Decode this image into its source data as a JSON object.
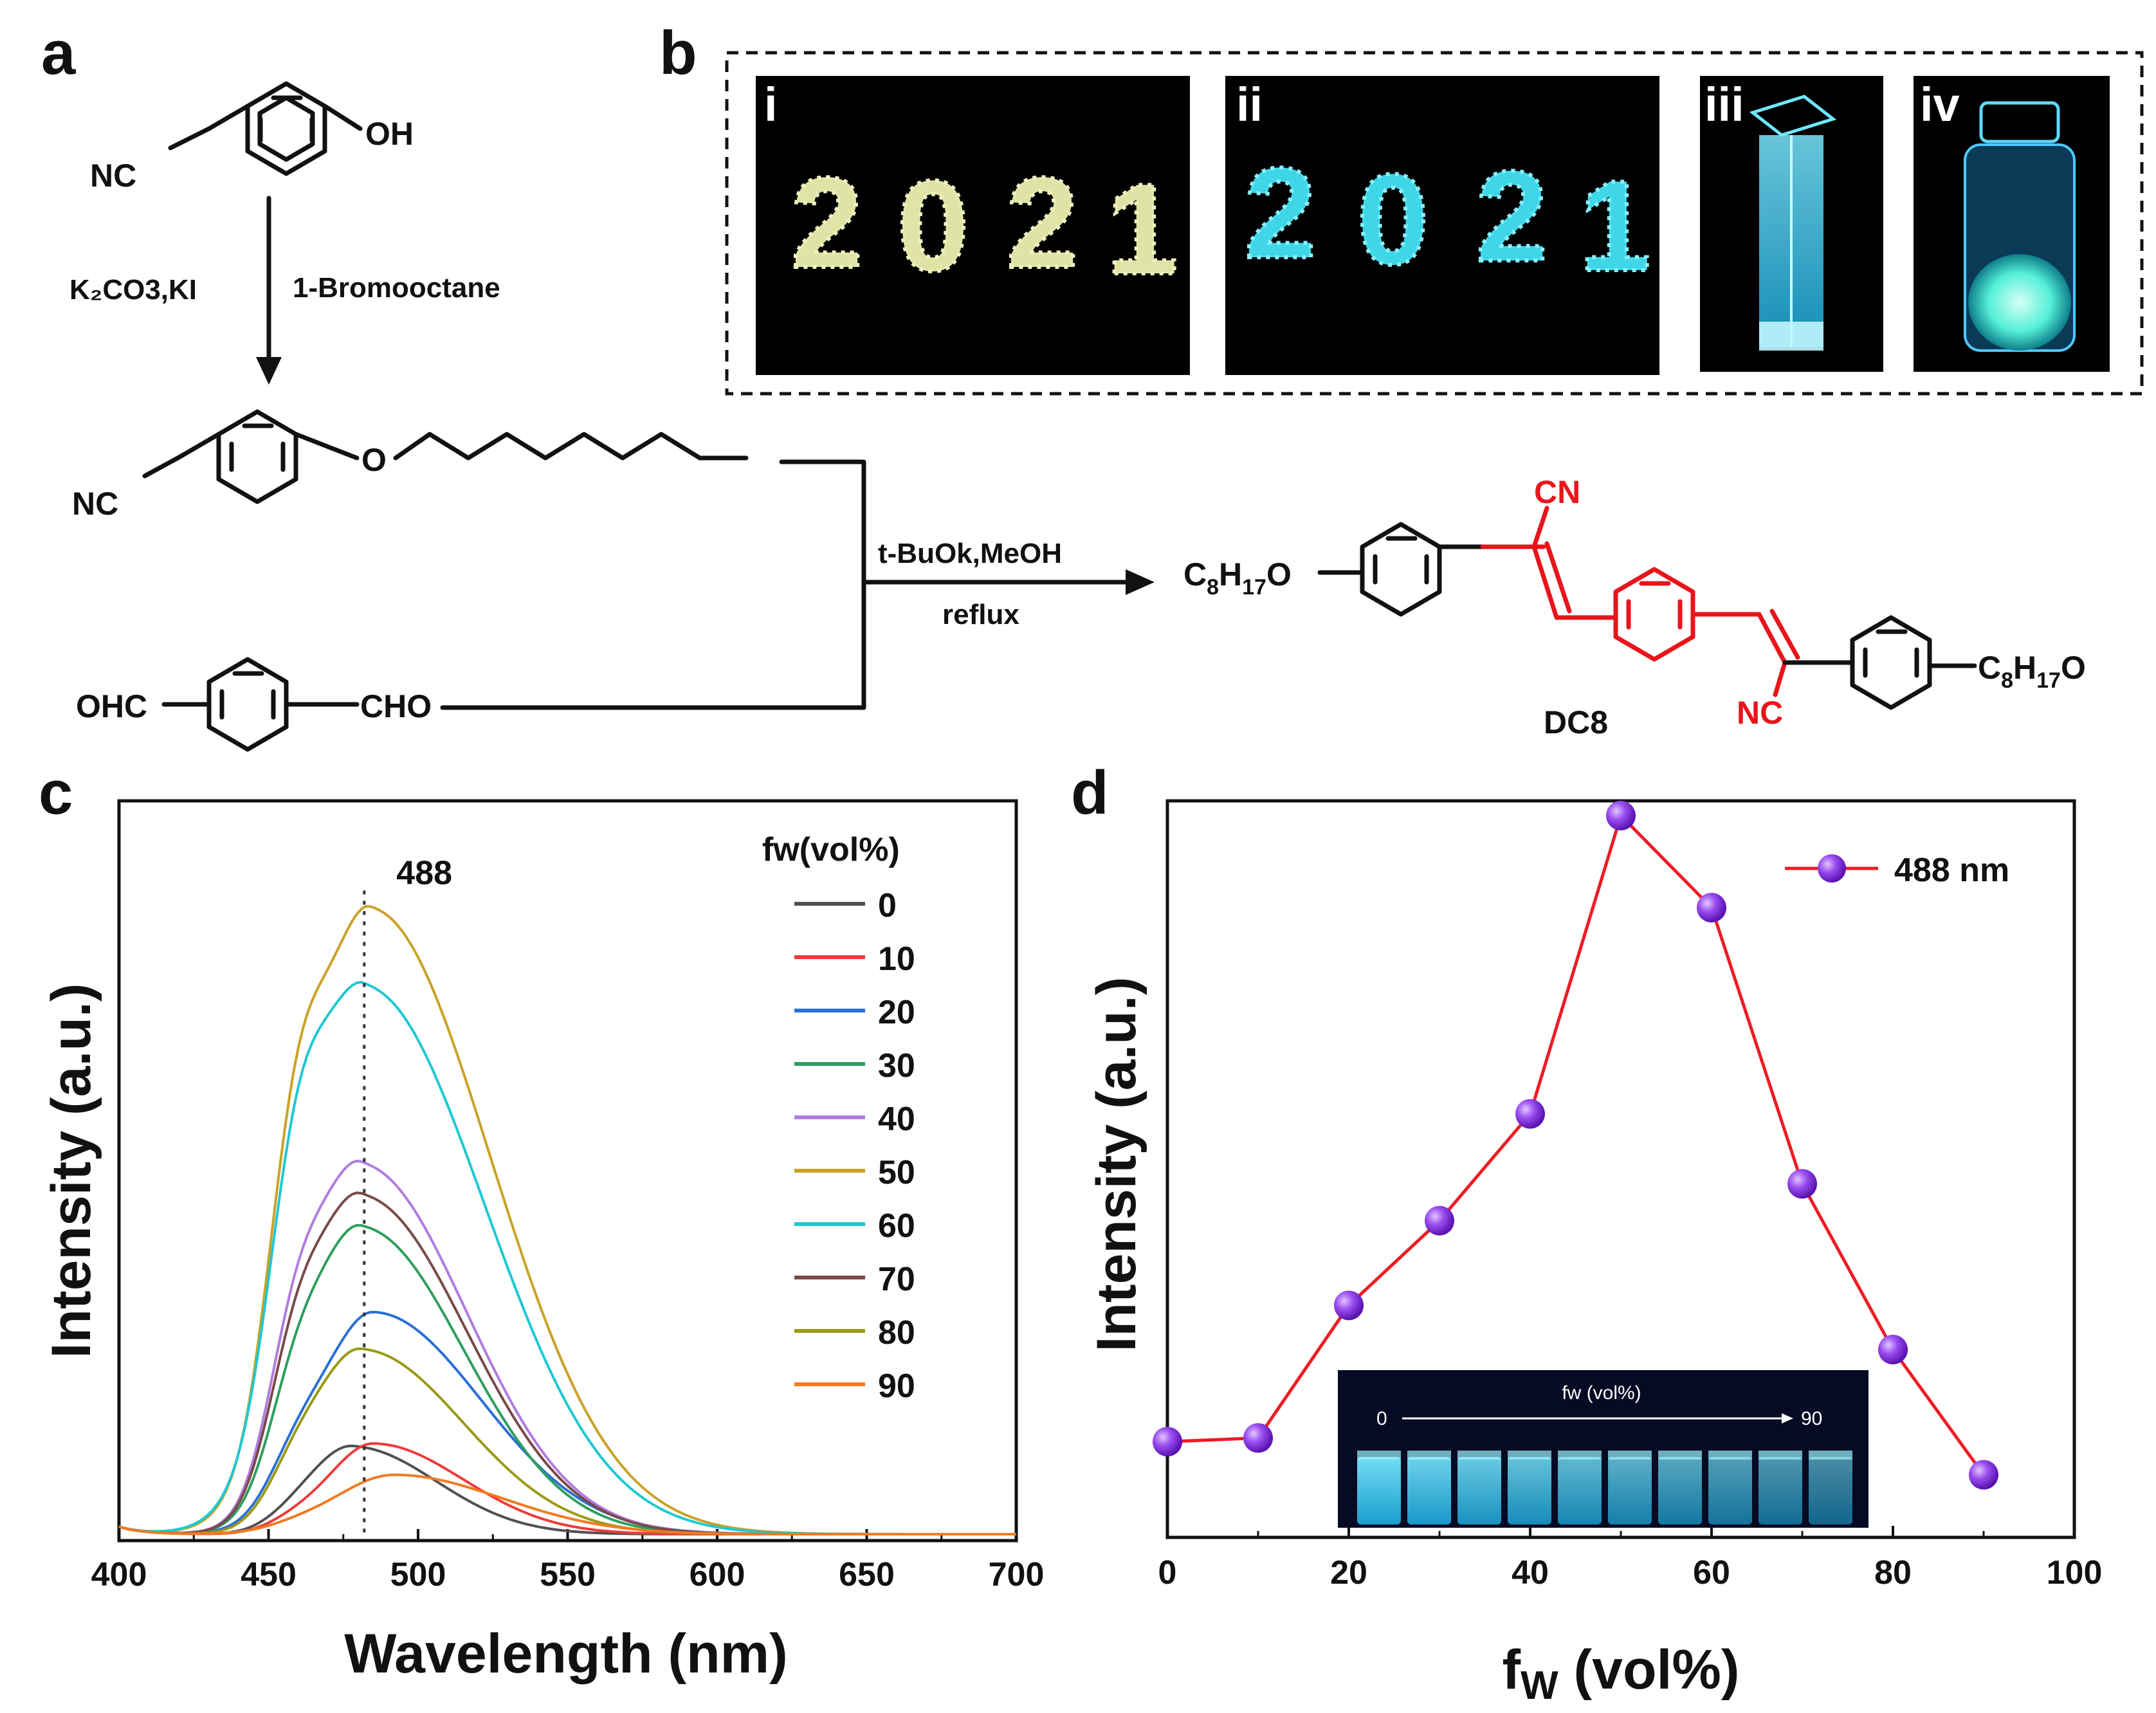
{
  "panels": {
    "a": "a",
    "b": "b",
    "c": "c",
    "d": "d"
  },
  "scheme": {
    "reactant1_left": "NC",
    "reactant1_right": "OH",
    "reagent_left": "K₂CO3,KI",
    "reagent_right": "1-Bromooctane",
    "intermediate_left": "NC",
    "intermediate_O": "O",
    "dialdehyde_left": "OHC",
    "dialdehyde_right": "CHO",
    "conditions_top": "t-BuOk,MeOH",
    "conditions_bottom": "reflux",
    "product_left_C": "C",
    "product_left_sub8": "8",
    "product_left_H": "H",
    "product_left_sub17": "17",
    "product_left_O": "O",
    "product_CN": "CN",
    "product_NC": "NC",
    "product_right_C": "C",
    "product_right_sub8": "8",
    "product_right_H": "H",
    "product_right_sub17": "17",
    "product_right_O": "O",
    "product_name": "DC8"
  },
  "photos": {
    "labels": [
      "i",
      "ii",
      "iii",
      "iv"
    ],
    "digits": [
      "2",
      "0",
      "2",
      "1"
    ],
    "colors": {
      "powder": "#dfe3a6",
      "fluorescent": "#3fd6e8",
      "background": "#000000"
    }
  },
  "chart_data": [
    {
      "panel": "c",
      "type": "line",
      "xlabel": "Wavelength (nm)",
      "ylabel": "Intensity (a.u.)",
      "xlim": [
        400,
        700
      ],
      "xticks": [
        "400",
        "450",
        "500",
        "550",
        "600",
        "650",
        "700"
      ],
      "ylim": [
        0,
        1.05
      ],
      "annotation": {
        "label": "488",
        "x": 482
      },
      "legend_title": "fw(vol%)",
      "series": [
        {
          "name": "0",
          "color": "#505050",
          "peak": 0.14,
          "center": 478,
          "w1": 14,
          "w2": 28,
          "shoulder": 0.1
        },
        {
          "name": "10",
          "color": "#ee3b3b",
          "peak": 0.145,
          "center": 485,
          "w1": 15,
          "w2": 30,
          "shoulder": 0.09
        },
        {
          "name": "20",
          "color": "#2a6fd6",
          "peak": 0.355,
          "center": 485,
          "w1": 18,
          "w2": 36,
          "shoulder": 0.15
        },
        {
          "name": "30",
          "color": "#2e9e5e",
          "peak": 0.49,
          "center": 481,
          "w1": 17,
          "w2": 34,
          "shoulder": 0.22
        },
        {
          "name": "40",
          "color": "#b07ce0",
          "peak": 0.59,
          "center": 481,
          "w1": 17,
          "w2": 35,
          "shoulder": 0.28
        },
        {
          "name": "50",
          "color": "#c9a227",
          "peak": 1.0,
          "center": 484,
          "w1": 20,
          "w2": 40,
          "shoulder": 0.3
        },
        {
          "name": "60",
          "color": "#1ec8d2",
          "peak": 0.875,
          "center": 482,
          "w1": 20,
          "w2": 40,
          "shoulder": 0.28
        },
        {
          "name": "70",
          "color": "#7a4a48",
          "peak": 0.54,
          "center": 481,
          "w1": 17,
          "w2": 35,
          "shoulder": 0.27
        },
        {
          "name": "80",
          "color": "#9a9a16",
          "peak": 0.295,
          "center": 481,
          "w1": 16,
          "w2": 34,
          "shoulder": 0.17
        },
        {
          "name": "90",
          "color": "#f27a20",
          "peak": 0.095,
          "center": 492,
          "w1": 20,
          "w2": 36,
          "shoulder": 0.05
        }
      ]
    },
    {
      "panel": "d",
      "type": "line",
      "xlabel_f": "f",
      "xlabel_sub": "W",
      "xlabel_rest": " (vol%)",
      "ylabel": "Intensity (a.u.)",
      "xlim": [
        0,
        100
      ],
      "xticks": [
        "0",
        "20",
        "40",
        "60",
        "80",
        "100"
      ],
      "ylim": [
        0,
        1
      ],
      "series": [
        {
          "name": "488 nm",
          "line_color": "#ee1c24",
          "marker_color": "#8a2be2",
          "x": [
            0,
            10,
            20,
            30,
            40,
            50,
            60,
            70,
            80,
            90
          ],
          "y": [
            0.13,
            0.135,
            0.315,
            0.43,
            0.575,
            0.98,
            0.855,
            0.48,
            0.255,
            0.085
          ]
        }
      ],
      "inset": {
        "title": "fw (vol%)",
        "start": "0",
        "end": "90",
        "vials": 10
      }
    }
  ]
}
